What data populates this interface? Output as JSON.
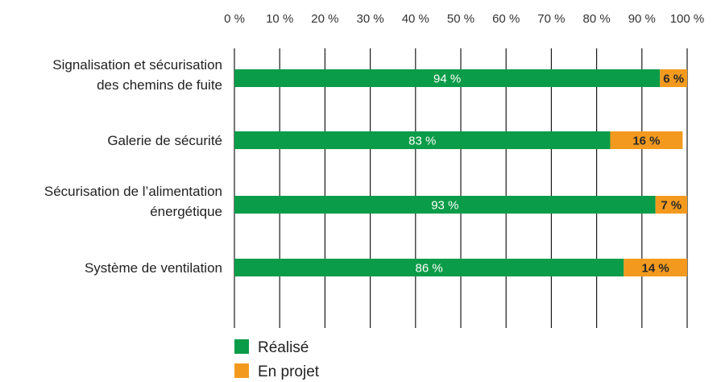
{
  "chart_data": {
    "type": "bar",
    "orientation": "horizontal",
    "stacked": true,
    "axis_position": "top",
    "xlim": [
      0,
      100
    ],
    "x_ticks": [
      "0 %",
      "10 %",
      "20 %",
      "30 %",
      "40 %",
      "50 %",
      "60 %",
      "70 %",
      "80 %",
      "90 %",
      "100 %"
    ],
    "grid": true,
    "legend_position": "bottom-left",
    "categories": [
      [
        "Signalisation et sécurisation",
        "des chemins de fuite"
      ],
      [
        "Galerie de sécurité"
      ],
      [
        "Sécurisation de l’alimentation",
        "énergétique"
      ],
      [
        "Système de ventilation"
      ]
    ],
    "series": [
      {
        "name": "Réalisé",
        "color": "#0a9c48",
        "values": [
          94,
          83,
          93,
          86
        ],
        "labels": [
          "94 %",
          "83 %",
          "93 %",
          "86 %"
        ]
      },
      {
        "name": "En projet",
        "color": "#f39a1e",
        "values": [
          6,
          16,
          7,
          14
        ],
        "labels": [
          "6 %",
          "16 %",
          "7 %",
          "14 %"
        ]
      }
    ]
  }
}
